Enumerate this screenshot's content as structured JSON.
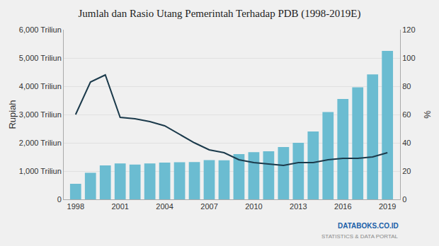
{
  "chart_data": {
    "type": "bar",
    "title": "Jumlah dan Rasio Utang Pemerintah Terhadap PDB (1998-2019E)",
    "ylabel": "Rupiah",
    "y2label": "%",
    "x": [
      1998,
      1999,
      2000,
      2001,
      2002,
      2003,
      2004,
      2005,
      2006,
      2007,
      2008,
      2009,
      2010,
      2011,
      2012,
      2013,
      2014,
      2015,
      2016,
      2017,
      2018,
      2019
    ],
    "series": [
      {
        "type": "bar",
        "color": "#6bbcd1",
        "values": [
          550,
          940,
          1200,
          1270,
          1230,
          1270,
          1300,
          1310,
          1320,
          1390,
          1380,
          1600,
          1670,
          1700,
          1850,
          2000,
          2400,
          3090,
          3550,
          3960,
          4420,
          5250
        ]
      },
      {
        "type": "line",
        "color": "#1b3a4b",
        "axis": "y2",
        "values": [
          60,
          83,
          88,
          58,
          57,
          55,
          52,
          46,
          40,
          35,
          33,
          28,
          26,
          25,
          24,
          26,
          26,
          28,
          29,
          29,
          30,
          33
        ]
      }
    ],
    "xlim": [
      1997.2,
      2019.85
    ],
    "xticks": [
      1998,
      2001,
      2004,
      2007,
      2010,
      2013,
      2016,
      2019
    ],
    "ylim": [
      0,
      6000
    ],
    "yticks": [
      0,
      {
        "value": 1000,
        "label": "1,000 Triliun"
      },
      {
        "value": 2000,
        "label": "2,000 Triliun"
      },
      {
        "value": 3000,
        "label": "3,000 Triliun"
      },
      {
        "value": 4000,
        "label": "4,000 Triliun"
      },
      {
        "value": 5000,
        "label": "5,000 Triliun"
      },
      {
        "value": 6000,
        "label": "6,000 Triliun"
      }
    ],
    "y2lim": [
      0,
      120
    ],
    "y2ticks": [
      0,
      20,
      40,
      60,
      80,
      100,
      120
    ],
    "grid": true,
    "annotations": [
      "DATABOKS.CO.ID",
      "STATISTICS & DATA PORTAL"
    ]
  }
}
